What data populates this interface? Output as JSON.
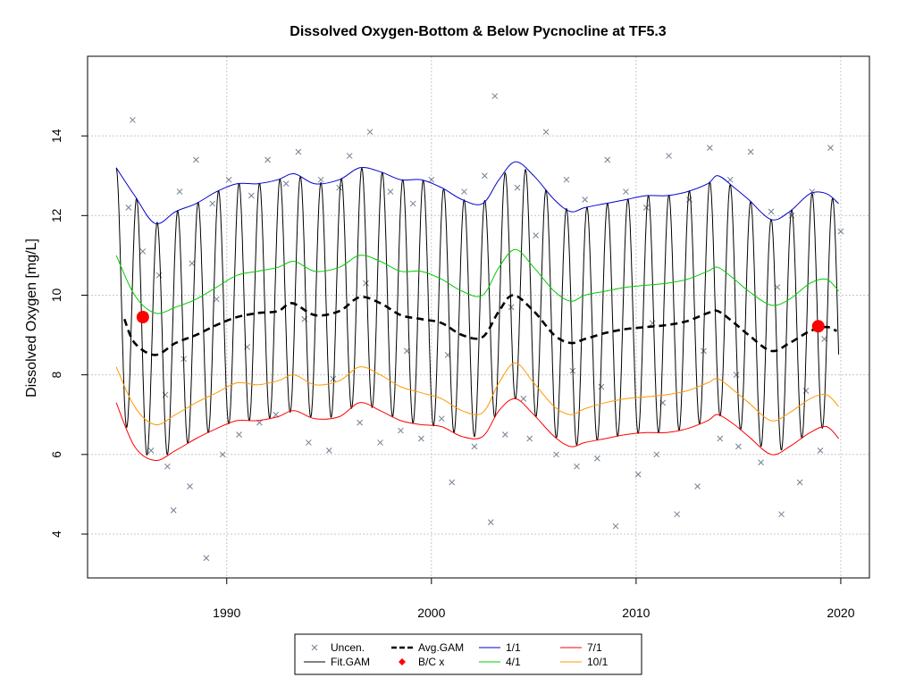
{
  "chart_data": {
    "type": "line",
    "title": "Dissolved Oxygen-Bottom & Below Pycnocline at TF5.3",
    "xlabel": "",
    "ylabel": "Dissolved Oxygen [mg/L]",
    "xlim": [
      1983.2,
      2021.4
    ],
    "ylim": [
      2.9,
      16.0
    ],
    "x_ticks": [
      1990,
      2000,
      2010,
      2020
    ],
    "y_ticks": [
      4,
      6,
      8,
      10,
      12,
      14
    ],
    "grid": true,
    "legend_position": "bottom",
    "legend": [
      {
        "label": "Uncen.",
        "style": "cross",
        "color": "#708090"
      },
      {
        "label": "Avg.GAM",
        "style": "dashed",
        "color": "#000000"
      },
      {
        "label": "1/1",
        "style": "line",
        "color": "#0000cd"
      },
      {
        "label": "7/1",
        "style": "line",
        "color": "#ff0000"
      },
      {
        "label": "Fit.GAM",
        "style": "line",
        "color": "#000000"
      },
      {
        "label": "B/C x",
        "style": "diamond",
        "color": "#ff0000"
      },
      {
        "label": "4/1",
        "style": "line",
        "color": "#00cd00"
      },
      {
        "label": "10/1",
        "style": "line",
        "color": "#ff9900"
      }
    ],
    "seasonal_fit": {
      "name": "Fit.GAM",
      "color": "#000000",
      "x_start": 1984.6,
      "x_end": 2019.9,
      "upper_envelope": "1/1",
      "lower_envelope": "7/1"
    },
    "series": [
      {
        "name": "1/1",
        "color": "#0000cd",
        "x": [
          1984.6,
          1985.5,
          1986.5,
          1987.5,
          1988.5,
          1989.5,
          1990.5,
          1991.5,
          1992.5,
          1993.3,
          1994.3,
          1995.5,
          1996.5,
          1997.5,
          1998.5,
          1999.5,
          2000.5,
          2001.5,
          2002.5,
          2003.3,
          2004.1,
          2005.0,
          2006.0,
          2006.8,
          2007.5,
          2008.5,
          2009.5,
          2010.5,
          2011.5,
          2012.5,
          2013.5,
          2014.0,
          2014.8,
          2015.5,
          2016.6,
          2017.5,
          2018.5,
          2019.3,
          2019.9
        ],
        "y": [
          13.2,
          12.5,
          11.8,
          12.1,
          12.3,
          12.6,
          12.8,
          12.8,
          12.9,
          13.05,
          12.8,
          12.9,
          13.2,
          13.1,
          12.9,
          12.9,
          12.7,
          12.4,
          12.3,
          12.9,
          13.35,
          13.0,
          12.4,
          12.1,
          12.2,
          12.3,
          12.4,
          12.5,
          12.5,
          12.6,
          12.8,
          13.0,
          12.7,
          12.4,
          11.9,
          12.1,
          12.55,
          12.55,
          12.3
        ]
      },
      {
        "name": "4/1",
        "color": "#00cd00",
        "x": [
          1984.6,
          1985.5,
          1986.5,
          1987.5,
          1988.5,
          1989.5,
          1990.5,
          1991.5,
          1992.5,
          1993.3,
          1994.3,
          1995.5,
          1996.5,
          1997.5,
          1998.5,
          1999.5,
          2000.5,
          2001.5,
          2002.5,
          2003.3,
          2004.1,
          2005.0,
          2006.0,
          2006.8,
          2007.5,
          2008.5,
          2009.5,
          2010.5,
          2011.5,
          2012.5,
          2013.5,
          2014.0,
          2014.8,
          2015.5,
          2016.6,
          2017.5,
          2018.5,
          2019.3,
          2019.9
        ],
        "y": [
          11.0,
          10.0,
          9.55,
          9.7,
          9.9,
          10.2,
          10.5,
          10.6,
          10.7,
          10.85,
          10.6,
          10.7,
          11.0,
          10.85,
          10.6,
          10.6,
          10.4,
          10.1,
          10.0,
          10.7,
          11.15,
          10.7,
          10.1,
          9.85,
          10.0,
          10.1,
          10.2,
          10.25,
          10.3,
          10.4,
          10.6,
          10.7,
          10.4,
          10.1,
          9.75,
          9.9,
          10.3,
          10.4,
          10.1
        ]
      },
      {
        "name": "Avg.GAM",
        "color": "#000000",
        "x": [
          1985.0,
          1985.5,
          1986.5,
          1987.5,
          1988.5,
          1989.5,
          1990.5,
          1991.5,
          1992.5,
          1993.2,
          1994.3,
          1995.5,
          1996.5,
          1997.5,
          1998.5,
          1999.5,
          2000.5,
          2001.5,
          2002.5,
          2003.3,
          2004.0,
          2005.0,
          2006.0,
          2006.8,
          2007.5,
          2008.5,
          2009.5,
          2010.5,
          2011.5,
          2012.5,
          2013.5,
          2014.0,
          2014.8,
          2015.5,
          2016.6,
          2017.5,
          2018.5,
          2019.3,
          2019.8
        ],
        "y": [
          9.4,
          8.8,
          8.5,
          8.8,
          9.0,
          9.25,
          9.45,
          9.55,
          9.6,
          9.8,
          9.5,
          9.6,
          9.95,
          9.8,
          9.5,
          9.4,
          9.3,
          9.0,
          8.95,
          9.6,
          10.0,
          9.6,
          9.0,
          8.8,
          8.9,
          9.05,
          9.15,
          9.2,
          9.25,
          9.35,
          9.55,
          9.6,
          9.3,
          9.0,
          8.6,
          8.8,
          9.1,
          9.2,
          9.1
        ]
      },
      {
        "name": "10/1",
        "color": "#ff9900",
        "x": [
          1984.6,
          1985.5,
          1986.5,
          1987.5,
          1988.5,
          1989.5,
          1990.5,
          1991.5,
          1992.5,
          1993.3,
          1994.3,
          1995.5,
          1996.5,
          1997.5,
          1998.5,
          1999.5,
          2000.5,
          2001.5,
          2002.5,
          2003.3,
          2004.1,
          2005.0,
          2006.0,
          2006.8,
          2007.5,
          2008.5,
          2009.5,
          2010.5,
          2011.5,
          2012.5,
          2013.5,
          2014.0,
          2014.8,
          2015.5,
          2016.6,
          2017.5,
          2018.5,
          2019.3,
          2019.9
        ],
        "y": [
          8.2,
          7.2,
          6.75,
          7.0,
          7.3,
          7.55,
          7.8,
          7.75,
          7.85,
          8.0,
          7.75,
          7.85,
          8.2,
          8.0,
          7.7,
          7.55,
          7.4,
          7.1,
          7.05,
          7.8,
          8.3,
          7.8,
          7.2,
          7.0,
          7.15,
          7.3,
          7.4,
          7.45,
          7.5,
          7.6,
          7.8,
          7.9,
          7.6,
          7.3,
          6.85,
          7.05,
          7.4,
          7.5,
          7.2
        ]
      },
      {
        "name": "7/1",
        "color": "#ff0000",
        "x": [
          1984.6,
          1985.5,
          1986.5,
          1987.5,
          1988.5,
          1989.5,
          1990.5,
          1991.5,
          1992.5,
          1993.3,
          1994.3,
          1995.5,
          1996.5,
          1997.5,
          1998.5,
          1999.5,
          2000.5,
          2001.5,
          2002.5,
          2003.3,
          2004.1,
          2005.0,
          2006.0,
          2006.8,
          2007.5,
          2008.5,
          2009.5,
          2010.5,
          2011.5,
          2012.5,
          2013.5,
          2014.0,
          2014.8,
          2015.5,
          2016.6,
          2017.5,
          2018.5,
          2019.3,
          2019.9
        ],
        "y": [
          7.3,
          6.2,
          5.85,
          6.1,
          6.4,
          6.65,
          6.85,
          6.85,
          6.95,
          7.1,
          6.9,
          6.95,
          7.3,
          7.1,
          6.85,
          6.75,
          6.7,
          6.45,
          6.45,
          7.1,
          7.4,
          7.0,
          6.45,
          6.2,
          6.3,
          6.4,
          6.5,
          6.55,
          6.55,
          6.65,
          6.85,
          7.0,
          6.75,
          6.45,
          6.0,
          6.2,
          6.55,
          6.7,
          6.4
        ]
      }
    ],
    "bc_points": {
      "name": "B/C x",
      "color": "#ff0000",
      "x": [
        1985.9,
        2018.9
      ],
      "y": [
        9.45,
        9.22
      ]
    },
    "uncensored_points": {
      "name": "Uncen.",
      "color": "#708090",
      "x": [
        1985.2,
        1985.4,
        1985.9,
        1986.3,
        1986.7,
        1987.1,
        1987.4,
        1987.7,
        1988.2,
        1988.5,
        1989.0,
        1989.3,
        1989.8,
        1990.1,
        1990.6,
        1991.2,
        1991.6,
        1992.0,
        1992.4,
        1992.9,
        1993.5,
        1994.0,
        1994.6,
        1995.0,
        1995.5,
        1996.0,
        1996.5,
        1997.0,
        1997.5,
        1998.0,
        1998.5,
        1999.1,
        1999.5,
        2000.0,
        2000.5,
        2001.0,
        2001.6,
        2002.1,
        2002.6,
        2002.9,
        2003.1,
        2003.6,
        2004.2,
        2004.8,
        2005.1,
        2005.6,
        2006.1,
        2006.6,
        2007.1,
        2007.5,
        2008.1,
        2008.6,
        2009.0,
        2009.5,
        2010.1,
        2010.5,
        2011.0,
        2011.6,
        2012.0,
        2012.6,
        2013.0,
        2013.6,
        2014.1,
        2014.6,
        2015.0,
        2015.6,
        2016.1,
        2016.6,
        2017.1,
        2017.6,
        2018.0,
        2018.6,
        2019.0,
        2019.5,
        2020.0,
        1986.0,
        1987.9,
        1988.3,
        1989.5,
        1991.0,
        1993.8,
        1996.8,
        2000.8,
        2003.9,
        2006.9,
        2010.8,
        2013.3,
        2016.9,
        2019.2,
        1987.0,
        1995.2,
        1998.8,
        2004.5,
        2008.3,
        2011.3,
        2014.9,
        2018.3
      ],
      "y": [
        12.2,
        14.4,
        11.1,
        6.1,
        10.5,
        5.7,
        4.6,
        12.6,
        5.2,
        13.4,
        3.4,
        12.3,
        6.0,
        12.9,
        6.5,
        12.5,
        6.8,
        13.4,
        7.0,
        12.8,
        13.6,
        6.3,
        12.9,
        6.1,
        12.7,
        13.5,
        6.8,
        14.1,
        6.3,
        12.6,
        6.6,
        12.3,
        6.4,
        12.9,
        6.9,
        5.3,
        12.6,
        6.2,
        13.0,
        4.3,
        15.0,
        6.5,
        12.7,
        6.4,
        11.5,
        14.1,
        6.0,
        12.9,
        5.7,
        12.4,
        5.9,
        13.4,
        4.2,
        12.6,
        5.5,
        12.2,
        6.0,
        13.5,
        4.5,
        12.4,
        5.2,
        13.7,
        6.4,
        12.9,
        6.2,
        13.6,
        5.8,
        12.1,
        4.5,
        12.0,
        5.3,
        12.6,
        6.1,
        13.7,
        11.6,
        9.5,
        8.4,
        10.8,
        9.9,
        8.7,
        9.4,
        10.3,
        8.5,
        9.7,
        8.1,
        9.3,
        8.6,
        10.2,
        8.9,
        7.5,
        7.9,
        8.6,
        7.4,
        7.7,
        7.3,
        8.0,
        7.6
      ]
    }
  }
}
